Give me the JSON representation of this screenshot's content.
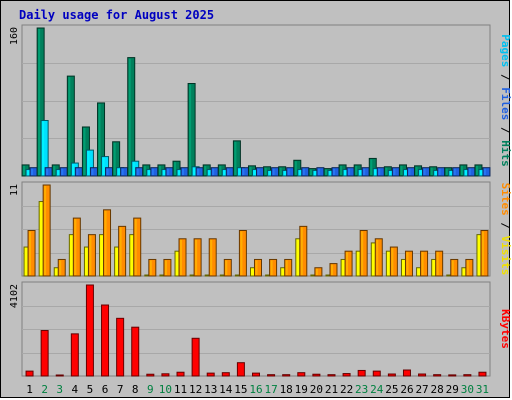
{
  "chart_data": [
    {
      "type": "bar",
      "title": "Daily usage for August 2025",
      "categories": [
        "1",
        "2",
        "3",
        "4",
        "5",
        "6",
        "7",
        "8",
        "9",
        "10",
        "11",
        "12",
        "13",
        "14",
        "15",
        "16",
        "17",
        "18",
        "19",
        "20",
        "21",
        "22",
        "23",
        "24",
        "25",
        "26",
        "27",
        "28",
        "29",
        "30",
        "31"
      ],
      "weekend_days": [
        "2",
        "3",
        "9",
        "10",
        "16",
        "17",
        "23",
        "24",
        "30",
        "31"
      ],
      "y_tick_label": "160",
      "ylim": [
        0,
        160
      ],
      "series": [
        {
          "name": "Hits",
          "color": "#00805c",
          "values": [
            12,
            160,
            12,
            108,
            53,
            79,
            37,
            128,
            12,
            12,
            16,
            100,
            12,
            12,
            38,
            11,
            10,
            10,
            17,
            8,
            8,
            12,
            12,
            19,
            10,
            12,
            11,
            10,
            9,
            12,
            12
          ]
        },
        {
          "name": "Files",
          "color": "#00e0ff",
          "values": [
            7,
            60,
            7,
            14,
            28,
            21,
            9,
            16,
            7,
            7,
            7,
            10,
            7,
            7,
            9,
            7,
            6,
            6,
            7,
            6,
            6,
            7,
            7,
            8,
            6,
            7,
            7,
            6,
            6,
            7,
            7
          ]
        },
        {
          "name": "Pages",
          "color": "#2060e0",
          "values": [
            9,
            9,
            9,
            9,
            9,
            9,
            9,
            9,
            9,
            9,
            9,
            9,
            9,
            9,
            9,
            9,
            9,
            9,
            9,
            9,
            9,
            9,
            9,
            9,
            9,
            9,
            9,
            9,
            9,
            9,
            9
          ]
        }
      ],
      "side_labels": [
        "Pages",
        "Files",
        "Hits"
      ],
      "side_label_colors": [
        "#00c0f0",
        "#2060e0",
        "#00805c"
      ]
    },
    {
      "type": "bar",
      "categories": [
        "1",
        "2",
        "3",
        "4",
        "5",
        "6",
        "7",
        "8",
        "9",
        "10",
        "11",
        "12",
        "13",
        "14",
        "15",
        "16",
        "17",
        "18",
        "19",
        "20",
        "21",
        "22",
        "23",
        "24",
        "25",
        "26",
        "27",
        "28",
        "29",
        "30",
        "31"
      ],
      "y_tick_label": "11",
      "ylim": [
        0,
        11
      ],
      "series": [
        {
          "name": "Visits",
          "color": "#ffff00",
          "values": [
            3.5,
            9,
            1,
            5,
            3.5,
            5,
            3.5,
            5,
            0,
            0,
            3,
            0,
            0,
            0,
            0,
            1,
            0,
            1,
            4.5,
            0,
            0,
            2,
            3,
            4,
            3,
            2,
            1,
            2,
            0,
            1,
            5
          ]
        },
        {
          "name": "Sites",
          "color": "#ff8c00",
          "values": [
            5.5,
            11,
            2,
            7,
            5,
            8,
            6,
            7,
            2,
            2,
            4.5,
            4.5,
            4.5,
            2,
            5.5,
            2,
            2,
            2,
            6,
            1,
            1.5,
            3,
            5.5,
            4.5,
            3.5,
            3,
            3,
            3,
            2,
            2,
            5.5
          ]
        }
      ],
      "side_labels": [
        "Sites",
        "Visits"
      ],
      "side_label_colors": [
        "#ff8c00",
        "#f0e000"
      ]
    },
    {
      "type": "bar",
      "categories": [
        "1",
        "2",
        "3",
        "4",
        "5",
        "6",
        "7",
        "8",
        "9",
        "10",
        "11",
        "12",
        "13",
        "14",
        "15",
        "16",
        "17",
        "18",
        "19",
        "20",
        "21",
        "22",
        "23",
        "24",
        "25",
        "26",
        "27",
        "28",
        "29",
        "30",
        "31"
      ],
      "y_tick_label": "4102",
      "ylim": [
        0,
        4102
      ],
      "series": [
        {
          "name": "KBytes",
          "color": "#ff0000",
          "values": [
            220,
            2050,
            40,
            1900,
            4102,
            3200,
            2600,
            2200,
            80,
            100,
            170,
            1700,
            130,
            150,
            600,
            130,
            60,
            60,
            150,
            80,
            60,
            110,
            250,
            220,
            90,
            270,
            90,
            60,
            50,
            60,
            170
          ]
        }
      ],
      "side_labels": [
        "KBytes"
      ],
      "side_label_colors": [
        "#ff0000"
      ]
    }
  ],
  "title_color": "#0000c0",
  "weekday_label_color": "#000000",
  "weekend_label_color": "#008040"
}
